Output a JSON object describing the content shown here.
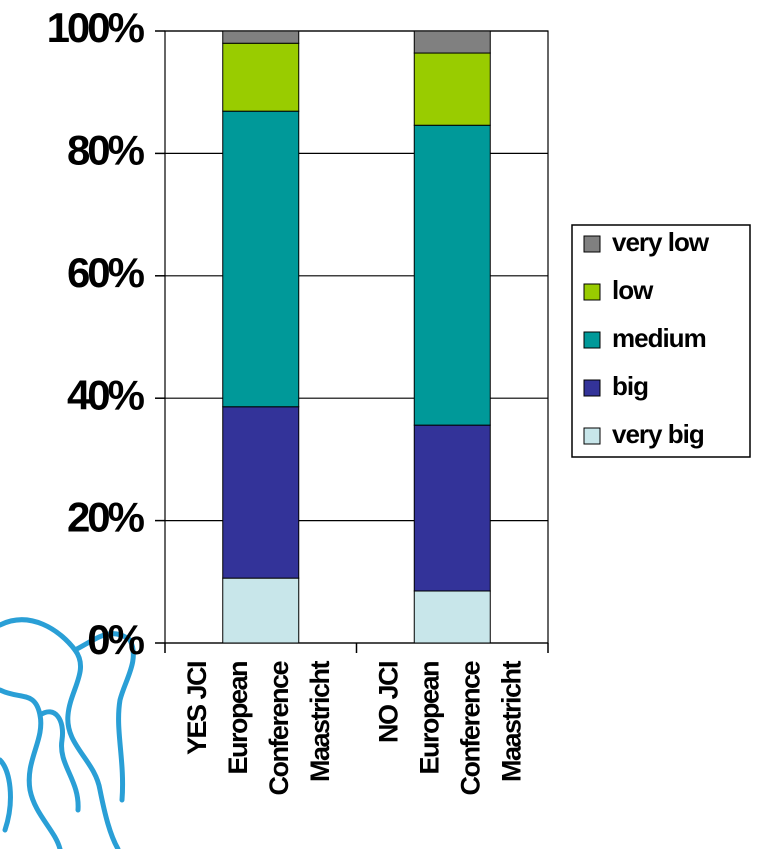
{
  "chart_data": {
    "type": "stacked-bar",
    "categories": [
      [
        "YES JCI",
        "European",
        "Conference",
        "Maastricht"
      ],
      [
        "NO JCI",
        "European",
        "Conference",
        "Maastricht"
      ]
    ],
    "series": [
      {
        "name": "very big",
        "color": "#c8e6ea",
        "values": [
          10.6,
          8.5
        ]
      },
      {
        "name": "big",
        "color": "#333399",
        "values": [
          28,
          27.1
        ]
      },
      {
        "name": "medium",
        "color": "#009999",
        "values": [
          48.3,
          49
        ]
      },
      {
        "name": "low",
        "color": "#99cc00",
        "values": [
          11.1,
          11.8
        ]
      },
      {
        "name": "very low",
        "color": "#808080",
        "values": [
          2,
          3.6
        ]
      }
    ],
    "ylim": [
      0,
      100
    ],
    "yticks": [
      {
        "value": 0,
        "label": "0%"
      },
      {
        "value": 20,
        "label": "20%"
      },
      {
        "value": 40,
        "label": "40%"
      },
      {
        "value": 60,
        "label": "60%"
      },
      {
        "value": 80,
        "label": "80%"
      },
      {
        "value": 100,
        "label": "100%"
      }
    ],
    "grid": true,
    "legend": "right"
  }
}
